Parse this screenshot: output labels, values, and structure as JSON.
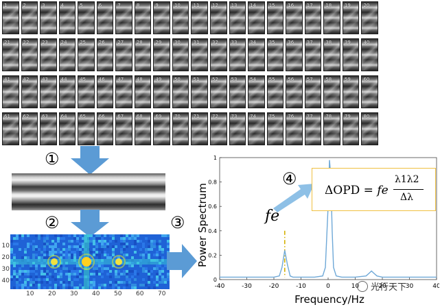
{
  "frames": {
    "labels": [
      "1",
      "2",
      "3",
      "4",
      "5",
      "6",
      "7",
      "8",
      "9",
      "10",
      "11",
      "12",
      "13",
      "14",
      "15",
      "16",
      "17",
      "18",
      "19",
      "20",
      "21",
      "22",
      "23",
      "24",
      "25",
      "26",
      "27",
      "28",
      "29",
      "30",
      "31",
      "32",
      "33",
      "34",
      "35",
      "36",
      "37",
      "38",
      "39",
      "40",
      "41",
      "42",
      "43",
      "44",
      "45",
      "46",
      "47",
      "48",
      "49",
      "50",
      "51",
      "52",
      "53",
      "54",
      "55",
      "56",
      "57",
      "58",
      "59",
      "60",
      "61",
      "62",
      "63",
      "64",
      "65",
      "66",
      "67",
      "68",
      "69",
      "70",
      "71",
      "72",
      "73",
      "74",
      "75",
      "76",
      "77",
      "78",
      "79",
      "80"
    ]
  },
  "steps": {
    "s1": "①",
    "s2": "②",
    "s3": "③",
    "s4": "④"
  },
  "spectrogram": {
    "y_ticks": [
      "10",
      "20",
      "30",
      "40"
    ],
    "x_ticks": [
      "10",
      "20",
      "30",
      "40",
      "50",
      "60",
      "70"
    ]
  },
  "chart_data": {
    "type": "line",
    "xlabel": "Frequency/Hz",
    "ylabel": "Power Spectrum",
    "xlim": [
      -40,
      40
    ],
    "ylim": [
      0,
      1
    ],
    "x_ticks": [
      "-40",
      "-30",
      "-20",
      "-10",
      "0",
      "10",
      "20",
      "30",
      "40"
    ],
    "y_ticks": [
      "0",
      "0.2",
      "0.4",
      "0.6",
      "0.8",
      "1"
    ],
    "series": [
      {
        "x": [
          -40,
          -35,
          -30,
          -25,
          -20,
          -18,
          -17,
          -16,
          -15,
          -14,
          -13,
          -10,
          -5,
          -2,
          -1,
          0,
          0.5,
          1,
          1.5,
          2,
          3,
          5,
          10,
          14,
          15,
          16,
          17,
          18,
          20,
          25,
          30,
          35,
          40
        ],
        "values": [
          0.02,
          0.02,
          0.02,
          0.02,
          0.02,
          0.03,
          0.1,
          0.24,
          0.12,
          0.03,
          0.02,
          0.02,
          0.02,
          0.03,
          0.1,
          0.6,
          0.98,
          0.85,
          0.4,
          0.1,
          0.03,
          0.02,
          0.02,
          0.03,
          0.05,
          0.07,
          0.05,
          0.03,
          0.02,
          0.02,
          0.02,
          0.02,
          0.02
        ]
      }
    ],
    "marker_x": -16,
    "marker_label": "fe",
    "formula": {
      "lhs": "ΔOPD = ",
      "fe": "fe",
      "numerator": "λ1λ2",
      "denominator": "Δλ"
    }
  },
  "watermark": "光行天下",
  "colors": {
    "arrow": "#5b9bd5",
    "line": "#6ea8d7",
    "marker": "#d4b000",
    "box": "#f0c040"
  }
}
